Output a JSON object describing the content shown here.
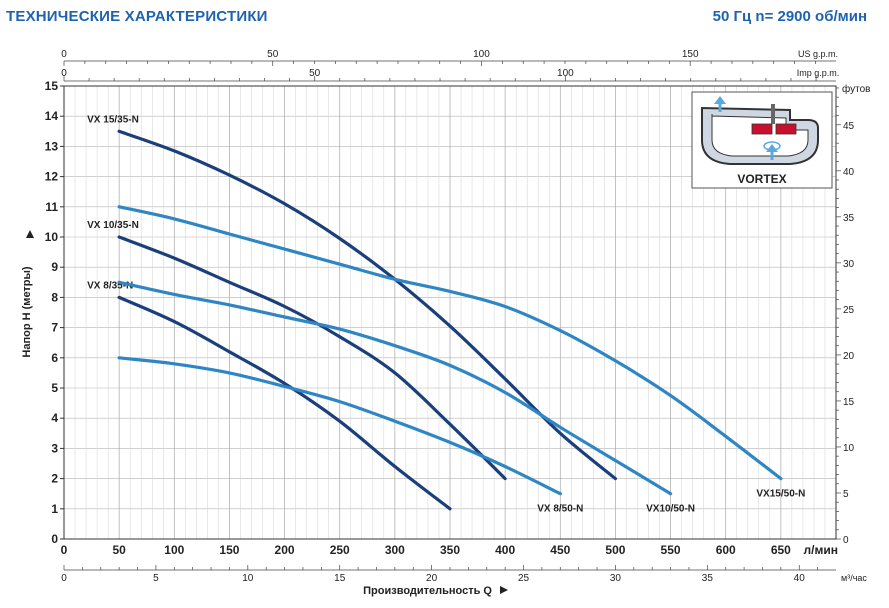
{
  "header": {
    "title": "ТЕХНИЧЕСКИЕ ХАРАКТЕРИСТИКИ",
    "spec": "50 Гц  n= 2900 об/мин"
  },
  "chart_data": {
    "type": "line",
    "title": "ТЕХНИЧЕСКИЕ ХАРАКТЕРИСТИКИ",
    "xlabel": "Производительность  Q",
    "ylabel": "Напор H (метры)",
    "x_unit": "л/мин",
    "xlim": [
      0,
      700
    ],
    "ylim": [
      0,
      15
    ],
    "y_ticks": [
      0,
      1,
      2,
      3,
      4,
      5,
      6,
      7,
      8,
      9,
      10,
      11,
      12,
      13,
      14,
      15
    ],
    "x_ticks": [
      0,
      50,
      100,
      150,
      200,
      250,
      300,
      350,
      400,
      450,
      500,
      550,
      600,
      650
    ],
    "secondary_axes": {
      "us_gpm": {
        "label": "US g.p.m.",
        "ticks": [
          0,
          50,
          100,
          150
        ]
      },
      "imp_gpm": {
        "label": "Imp g.p.m.",
        "ticks": [
          0,
          50,
          100
        ]
      },
      "m3h": {
        "label": "м³/час",
        "ticks": [
          0,
          5,
          10,
          15,
          20,
          25,
          30,
          35,
          40
        ]
      },
      "feet": {
        "label": "футов",
        "ticks": [
          0,
          5,
          10,
          15,
          20,
          25,
          30,
          35,
          40,
          45
        ]
      }
    },
    "grid": true,
    "series": [
      {
        "name": "VX 15/35-N",
        "color": "#1b3f7a",
        "label_pos": "start",
        "x": [
          50,
          100,
          150,
          200,
          250,
          300,
          350,
          400,
          450,
          500
        ],
        "y": [
          13.5,
          12.85,
          12.05,
          11.1,
          9.95,
          8.6,
          7.05,
          5.3,
          3.5,
          2.0
        ]
      },
      {
        "name": "VX 10/35-N",
        "color": "#1b3f7a",
        "label_pos": "start",
        "x": [
          50,
          100,
          150,
          200,
          250,
          300,
          350,
          400
        ],
        "y": [
          10.0,
          9.3,
          8.5,
          7.7,
          6.7,
          5.5,
          3.8,
          2.0
        ]
      },
      {
        "name": "VX 8/35-N",
        "color": "#1b3f7a",
        "label_pos": "start",
        "x": [
          50,
          100,
          150,
          200,
          250,
          300,
          350
        ],
        "y": [
          8.0,
          7.2,
          6.2,
          5.15,
          3.9,
          2.4,
          1.0
        ]
      },
      {
        "name": "VX15/50-N",
        "color": "#2f86c5",
        "label_pos": "end",
        "x": [
          50,
          100,
          150,
          200,
          250,
          300,
          350,
          400,
          450,
          500,
          550,
          600,
          650
        ],
        "y": [
          11.0,
          10.6,
          10.1,
          9.6,
          9.1,
          8.6,
          8.2,
          7.7,
          6.9,
          5.9,
          4.75,
          3.4,
          2.0
        ]
      },
      {
        "name": "VX10/50-N",
        "color": "#2f86c5",
        "label_pos": "end",
        "x": [
          50,
          100,
          150,
          200,
          250,
          300,
          350,
          400,
          450,
          500,
          550
        ],
        "y": [
          8.5,
          8.1,
          7.75,
          7.35,
          6.95,
          6.4,
          5.75,
          4.85,
          3.7,
          2.6,
          1.5
        ]
      },
      {
        "name": "VX 8/50-N",
        "color": "#2f86c5",
        "label_pos": "end",
        "x": [
          50,
          100,
          150,
          200,
          250,
          300,
          350,
          400,
          450
        ],
        "y": [
          6.0,
          5.8,
          5.5,
          5.05,
          4.55,
          3.9,
          3.2,
          2.4,
          1.5
        ]
      }
    ],
    "inset": {
      "label": "VORTEX"
    }
  }
}
